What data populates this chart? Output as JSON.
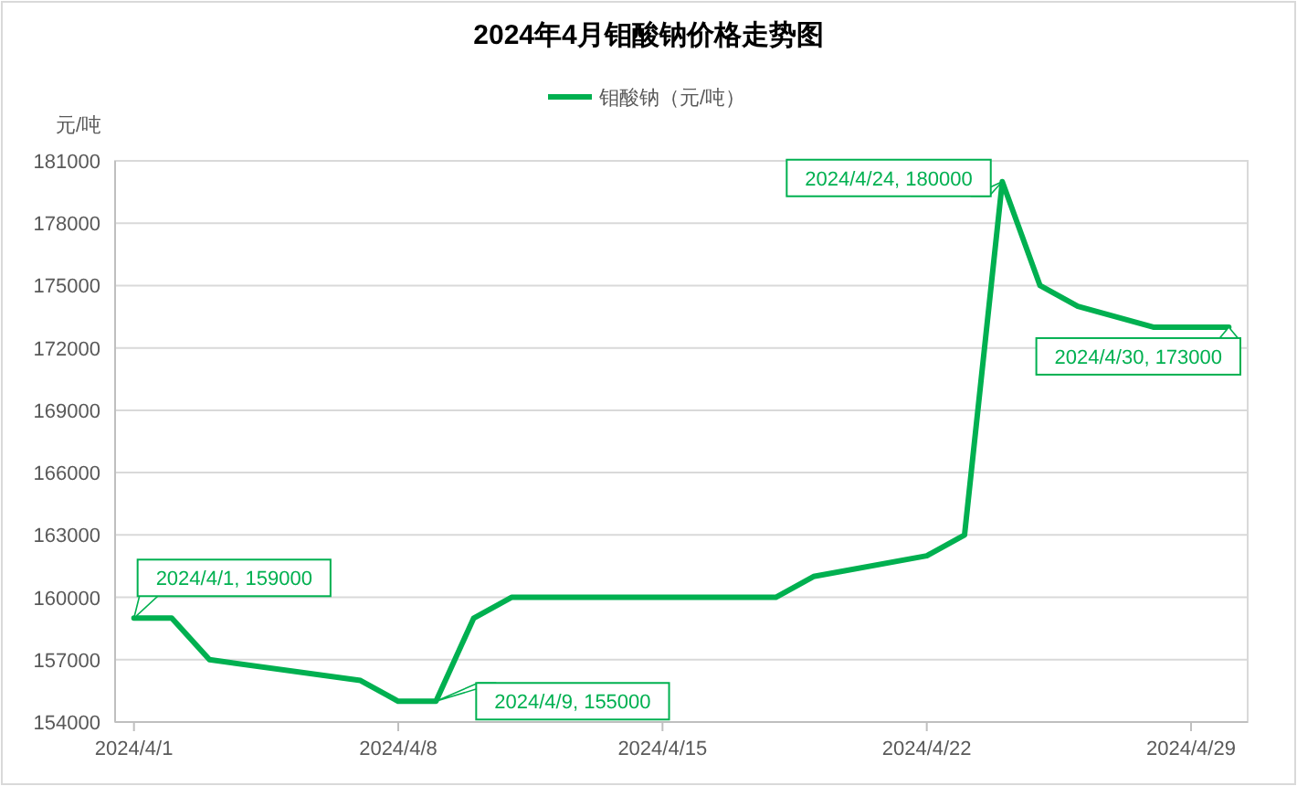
{
  "chart_data": {
    "type": "line",
    "title": "2024年4月钼酸钠价格走势图",
    "ylabel": "元/吨",
    "x": [
      "2024-04-01",
      "2024-04-02",
      "2024-04-03",
      "2024-04-07",
      "2024-04-08",
      "2024-04-09",
      "2024-04-10",
      "2024-04-11",
      "2024-04-18",
      "2024-04-19",
      "2024-04-22",
      "2024-04-23",
      "2024-04-24",
      "2024-04-25",
      "2024-04-26",
      "2024-04-28",
      "2024-04-30"
    ],
    "series": [
      {
        "name": "钼酸钠（元/吨）",
        "color": "#00b050",
        "values": [
          159000,
          159000,
          157000,
          156000,
          155000,
          155000,
          159000,
          160000,
          160000,
          161000,
          162000,
          163000,
          180000,
          175000,
          174000,
          173000,
          173000
        ]
      }
    ],
    "xlim": [
      "2024-03-31T12:00",
      "2024-04-30T12:00"
    ],
    "xticks": [
      {
        "value": "2024-04-01",
        "label": "2024/4/1"
      },
      {
        "value": "2024-04-08",
        "label": "2024/4/8"
      },
      {
        "value": "2024-04-15",
        "label": "2024/4/15"
      },
      {
        "value": "2024-04-22",
        "label": "2024/4/22"
      },
      {
        "value": "2024-04-29",
        "label": "2024/4/29"
      }
    ],
    "ylim": [
      154000,
      181000
    ],
    "yticks": [
      154000,
      157000,
      160000,
      163000,
      166000,
      169000,
      172000,
      175000,
      178000,
      181000
    ],
    "grid": "y",
    "legend": "top",
    "marker": "none",
    "line_style": "solid",
    "annotations": [
      {
        "text": "2024/4/1, 159000",
        "x": "2024-04-01",
        "y": 159000
      },
      {
        "text": "2024/4/9, 155000",
        "x": "2024-04-09",
        "y": 155000
      },
      {
        "text": "2024/4/24, 180000",
        "x": "2024-04-24",
        "y": 180000
      },
      {
        "text": "2024/4/30, 173000",
        "x": "2024-04-30",
        "y": 173000
      }
    ]
  }
}
